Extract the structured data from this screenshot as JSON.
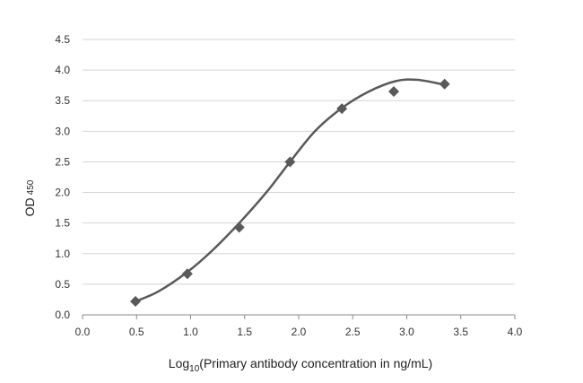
{
  "chart_data": {
    "type": "scatter",
    "title": "",
    "xlabel": {
      "prefix": "Log",
      "subscript": "10",
      "rest": "(Primary antibody concentration  in ng/mL)"
    },
    "ylabel": {
      "main": "OD",
      "subscript": "450"
    },
    "xlim": [
      0,
      4
    ],
    "ylim": [
      0,
      4.5
    ],
    "x_ticks": [
      "0.0",
      "0.5",
      "1.0",
      "1.5",
      "2.0",
      "2.5",
      "3.0",
      "3.5",
      "4.0"
    ],
    "y_ticks": [
      "0.0",
      "0.5",
      "1.0",
      "1.5",
      "2.0",
      "2.5",
      "3.0",
      "3.5",
      "4.0",
      "4.5"
    ],
    "grid": "horizontal",
    "series": [
      {
        "marker": "diamond",
        "color": "#595959",
        "x": [
          0.49,
          0.97,
          1.45,
          1.92,
          2.4,
          2.88,
          3.35
        ],
        "y": [
          0.22,
          0.67,
          1.43,
          2.5,
          3.37,
          3.65,
          3.77
        ]
      }
    ],
    "trendline": {
      "type": "smooth-fit",
      "color": "#595959",
      "x": [
        0.49,
        0.7,
        0.97,
        1.2,
        1.45,
        1.7,
        1.92,
        2.15,
        2.4,
        2.65,
        2.9,
        3.1,
        3.35
      ],
      "y": [
        0.22,
        0.38,
        0.7,
        1.05,
        1.5,
        2.0,
        2.5,
        3.0,
        3.38,
        3.65,
        3.82,
        3.84,
        3.76
      ]
    }
  }
}
